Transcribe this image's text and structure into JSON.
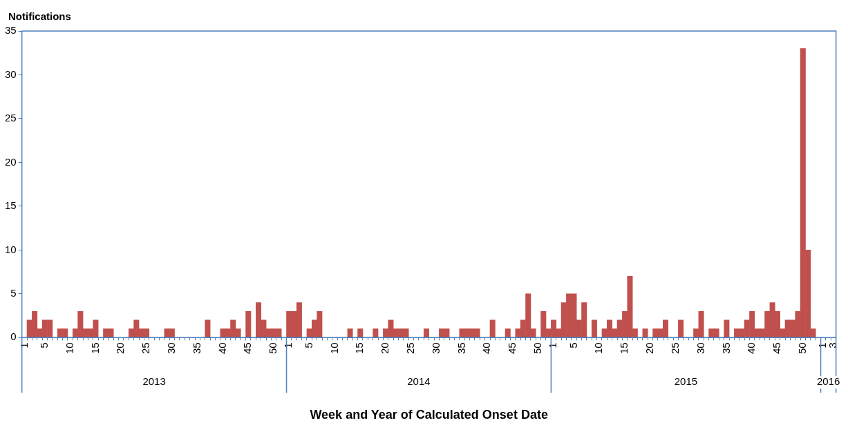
{
  "chart_data": {
    "type": "bar",
    "ylabel": "Notifications",
    "xlabel": "Week and Year of Calculated Onset Date",
    "categories": [
      "1",
      null,
      null,
      null,
      "5",
      null,
      null,
      null,
      null,
      "10",
      null,
      null,
      null,
      null,
      "15",
      null,
      null,
      null,
      null,
      "20",
      null,
      null,
      null,
      null,
      "25",
      null,
      null,
      null,
      null,
      "30",
      null,
      null,
      null,
      null,
      "35",
      null,
      null,
      null,
      null,
      "40",
      null,
      null,
      null,
      null,
      "45",
      null,
      null,
      null,
      null,
      "50",
      null,
      null,
      "1",
      null,
      null,
      null,
      "5",
      null,
      null,
      null,
      null,
      "10",
      null,
      null,
      null,
      null,
      "15",
      null,
      null,
      null,
      null,
      "20",
      null,
      null,
      null,
      null,
      "25",
      null,
      null,
      null,
      null,
      "30",
      null,
      null,
      null,
      null,
      "35",
      null,
      null,
      null,
      null,
      "40",
      null,
      null,
      null,
      null,
      "45",
      null,
      null,
      null,
      null,
      "50",
      null,
      null,
      "1",
      null,
      null,
      null,
      "5",
      null,
      null,
      null,
      null,
      "10",
      null,
      null,
      null,
      null,
      "15",
      null,
      null,
      null,
      null,
      "20",
      null,
      null,
      null,
      null,
      "25",
      null,
      null,
      null,
      null,
      "30",
      null,
      null,
      null,
      null,
      "35",
      null,
      null,
      null,
      null,
      "40",
      null,
      null,
      null,
      null,
      "45",
      null,
      null,
      null,
      null,
      "50",
      null,
      null,
      null,
      "1",
      null,
      "3"
    ],
    "values": [
      0,
      2,
      3,
      1,
      2,
      2,
      0,
      1,
      1,
      0,
      1,
      3,
      1,
      1,
      2,
      0,
      1,
      1,
      0,
      0,
      0,
      1,
      2,
      1,
      1,
      0,
      0,
      0,
      1,
      1,
      0,
      0,
      0,
      0,
      0,
      0,
      2,
      0,
      0,
      1,
      1,
      2,
      1,
      0,
      3,
      0,
      4,
      2,
      1,
      1,
      1,
      0,
      3,
      3,
      4,
      0,
      1,
      2,
      3,
      0,
      0,
      0,
      0,
      0,
      1,
      0,
      1,
      0,
      0,
      1,
      0,
      1,
      2,
      1,
      1,
      1,
      0,
      0,
      0,
      1,
      0,
      0,
      1,
      1,
      0,
      0,
      1,
      1,
      1,
      1,
      0,
      0,
      2,
      0,
      0,
      1,
      0,
      1,
      2,
      5,
      1,
      0,
      3,
      1,
      2,
      1,
      4,
      5,
      5,
      2,
      4,
      0,
      2,
      0,
      1,
      2,
      1,
      2,
      3,
      7,
      1,
      0,
      1,
      0,
      1,
      1,
      2,
      0,
      0,
      2,
      0,
      0,
      1,
      3,
      0,
      1,
      1,
      0,
      2,
      0,
      1,
      1,
      2,
      3,
      1,
      1,
      3,
      4,
      3,
      1,
      2,
      2,
      3,
      33,
      10,
      1,
      0,
      0,
      0,
      0
    ],
    "color": "#c0504d",
    "ylim": [
      0,
      35
    ],
    "yticks": [
      0,
      5,
      10,
      15,
      20,
      25,
      30,
      35
    ],
    "legend": false,
    "annotations": [
      "2013",
      "2014",
      "2015",
      "2016"
    ]
  }
}
